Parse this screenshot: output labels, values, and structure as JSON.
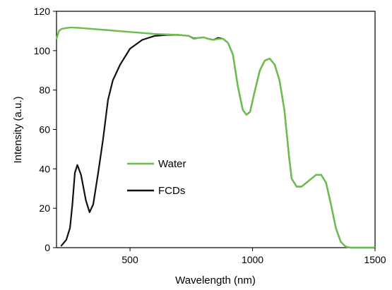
{
  "chart_data": {
    "type": "line",
    "xlabel": "Wavelength (nm)",
    "ylabel": "Intensity (a.u.)",
    "xlim": [
      200,
      1500
    ],
    "ylim": [
      0,
      120
    ],
    "xticks": [
      500,
      1000,
      1500
    ],
    "xtick_labels": [
      "500",
      "1000",
      "1500"
    ],
    "yticks": [
      0,
      20,
      40,
      60,
      80,
      100,
      120
    ],
    "ytick_labels": [
      "0",
      "20",
      "40",
      "60",
      "80",
      "100",
      "120"
    ],
    "grid": false,
    "legend_position": "center-left",
    "series": [
      {
        "name": "Water",
        "color": "#6abf4b",
        "x": [
          200,
          210,
          220,
          240,
          260,
          300,
          400,
          500,
          600,
          700,
          740,
          760,
          780,
          800,
          820,
          840,
          860,
          880,
          900,
          920,
          940,
          960,
          975,
          990,
          1010,
          1030,
          1050,
          1070,
          1090,
          1110,
          1130,
          1150,
          1160,
          1180,
          1200,
          1220,
          1240,
          1260,
          1280,
          1300,
          1320,
          1340,
          1360,
          1380,
          1400,
          1450,
          1500
        ],
        "y": [
          106,
          110,
          111,
          111.5,
          111.8,
          111.5,
          110.5,
          109.5,
          108.5,
          108,
          107.5,
          106,
          106.5,
          106.8,
          106,
          105.5,
          106,
          106,
          104,
          98,
          82,
          70,
          67.5,
          69,
          80,
          90,
          95,
          96,
          93,
          85,
          70,
          45,
          35,
          31,
          31,
          33,
          35,
          37,
          37,
          33,
          22,
          10,
          3,
          0.5,
          0,
          0,
          0
        ]
      },
      {
        "name": "FCDs",
        "color": "#111111",
        "x": [
          220,
          240,
          255,
          265,
          275,
          285,
          300,
          320,
          335,
          350,
          370,
          390,
          410,
          430,
          460,
          500,
          550,
          600,
          650,
          700,
          740,
          760,
          780,
          800,
          820,
          840,
          860,
          880,
          900,
          920,
          940,
          960,
          975,
          990,
          1010,
          1030,
          1050,
          1070,
          1090,
          1110,
          1130,
          1150,
          1160,
          1180,
          1200,
          1220,
          1240,
          1260,
          1280,
          1300,
          1320,
          1340,
          1360,
          1380,
          1400,
          1450,
          1500
        ],
        "y": [
          1,
          4,
          10,
          22,
          38,
          42,
          37,
          24,
          18,
          22,
          38,
          55,
          75,
          85,
          93,
          101,
          105.5,
          107.5,
          108,
          108,
          107.5,
          106.2,
          106.5,
          106.8,
          106,
          105.5,
          106.5,
          106,
          104,
          98,
          82,
          70,
          67.5,
          69,
          80,
          90,
          95,
          96,
          93,
          85,
          70,
          45,
          35,
          31,
          31,
          33,
          35,
          37,
          37,
          33,
          22,
          10,
          3,
          0.5,
          0,
          0,
          0
        ]
      }
    ]
  }
}
